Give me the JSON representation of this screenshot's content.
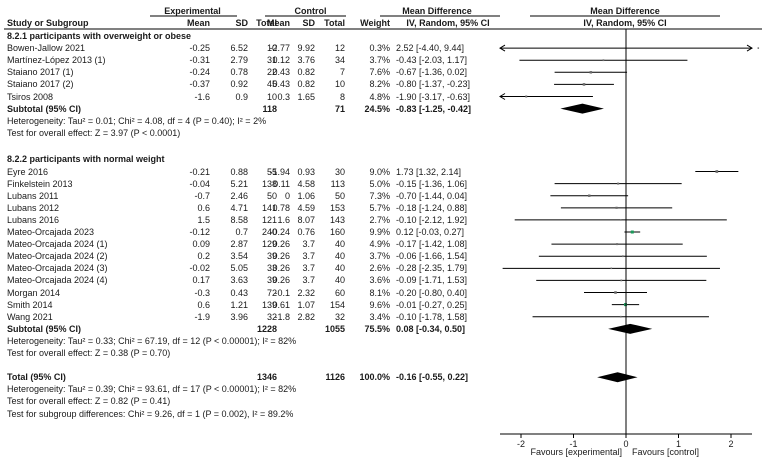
{
  "chart_data": {
    "type": "forest",
    "title": "Mean Difference",
    "plot_subtitle": "IV, Random, 95% CI",
    "header": {
      "group_experimental": "Experimental",
      "group_control": "Control",
      "weighted_title": "Mean Difference",
      "study": "Study or Subgroup",
      "mean_e": "Mean",
      "sd_e": "SD",
      "total_e": "Total",
      "mean_c": "Mean",
      "sd_c": "SD",
      "total_c": "Total",
      "weight": "Weight",
      "ci": "IV, Random, 95% CI"
    },
    "xaxis": {
      "range": [
        -2.4,
        2.4
      ],
      "ticks": [
        -2,
        -1,
        0,
        1,
        2
      ],
      "left_label": "Favours [experimental]",
      "right_label": "Favours [control]"
    },
    "subgroups": [
      {
        "title": "8.2.1 participants with overweight or obese",
        "studies": [
          {
            "name": "Bowen-Jallow 2021",
            "mean_e": "-0.25",
            "sd_e": "6.52",
            "n_e": "10",
            "mean_c": "-2.77",
            "sd_c": "9.92",
            "n_c": "12",
            "weight": "0.3%",
            "ci_text": "2.52 [-4.40, 9.44]",
            "md": 2.52,
            "lo": -4.4,
            "hi": 9.44
          },
          {
            "name": "Martínez-López 2013 (1)",
            "mean_e": "-0.31",
            "sd_e": "2.79",
            "n_e": "31",
            "mean_c": "0.12",
            "sd_c": "3.76",
            "n_c": "34",
            "weight": "3.7%",
            "ci_text": "-0.43 [-2.03, 1.17]",
            "md": -0.43,
            "lo": -2.03,
            "hi": 1.17
          },
          {
            "name": "Staiano 2017 (1)",
            "mean_e": "-0.24",
            "sd_e": "0.78",
            "n_e": "22",
            "mean_c": "0.43",
            "sd_c": "0.82",
            "n_c": "7",
            "weight": "7.6%",
            "ci_text": "-0.67 [-1.36, 0.02]",
            "md": -0.67,
            "lo": -1.36,
            "hi": 0.02
          },
          {
            "name": "Staiano 2017 (2)",
            "mean_e": "-0.37",
            "sd_e": "0.92",
            "n_e": "45",
            "mean_c": "0.43",
            "sd_c": "0.82",
            "n_c": "10",
            "weight": "8.2%",
            "ci_text": "-0.80 [-1.37, -0.23]",
            "md": -0.8,
            "lo": -1.37,
            "hi": -0.23
          },
          {
            "name": "Tsiros 2008",
            "mean_e": "-1.6",
            "sd_e": "0.9",
            "n_e": "10",
            "mean_c": "0.3",
            "sd_c": "1.65",
            "n_c": "8",
            "weight": "4.8%",
            "ci_text": "-1.90 [-3.17, -0.63]",
            "md": -1.9,
            "lo": -3.17,
            "hi": -0.63
          }
        ],
        "subtotal": {
          "label": "Subtotal (95% CI)",
          "n_e": "118",
          "n_c": "71",
          "weight": "24.5%",
          "ci_text": "-0.83 [-1.25, -0.42]",
          "md": -0.83,
          "lo": -1.25,
          "hi": -0.42
        },
        "heterogeneity": "Heterogeneity: Tau² = 0.01; Chi² = 4.08, df = 4 (P = 0.40); I² = 2%",
        "overall_test": "Test for overall effect: Z = 3.97 (P < 0.0001)"
      },
      {
        "title": "8.2.2 participants with normal weight",
        "studies": [
          {
            "name": "Eyre 2016",
            "mean_e": "-0.21",
            "sd_e": "0.88",
            "n_e": "55",
            "mean_c": "-1.94",
            "sd_c": "0.93",
            "n_c": "30",
            "weight": "9.0%",
            "ci_text": "1.73 [1.32, 2.14]",
            "md": 1.73,
            "lo": 1.32,
            "hi": 2.14
          },
          {
            "name": "Finkelstein 2013",
            "mean_e": "-0.04",
            "sd_e": "5.21",
            "n_e": "138",
            "mean_c": "0.11",
            "sd_c": "4.58",
            "n_c": "113",
            "weight": "5.0%",
            "ci_text": "-0.15 [-1.36, 1.06]",
            "md": -0.15,
            "lo": -1.36,
            "hi": 1.06
          },
          {
            "name": "Lubans 2011",
            "mean_e": "-0.7",
            "sd_e": "2.46",
            "n_e": "50",
            "mean_c": "0",
            "sd_c": "1.06",
            "n_c": "50",
            "weight": "7.3%",
            "ci_text": "-0.70 [-1.44, 0.04]",
            "md": -0.7,
            "lo": -1.44,
            "hi": 0.04
          },
          {
            "name": "Lubans 2012",
            "mean_e": "0.6",
            "sd_e": "4.71",
            "n_e": "141",
            "mean_c": "0.78",
            "sd_c": "4.59",
            "n_c": "153",
            "weight": "5.7%",
            "ci_text": "-0.18 [-1.24, 0.88]",
            "md": -0.18,
            "lo": -1.24,
            "hi": 0.88
          },
          {
            "name": "Lubans 2016",
            "mean_e": "1.5",
            "sd_e": "8.58",
            "n_e": "121",
            "mean_c": "1.6",
            "sd_c": "8.07",
            "n_c": "143",
            "weight": "2.7%",
            "ci_text": "-0.10 [-2.12, 1.92]",
            "md": -0.1,
            "lo": -2.12,
            "hi": 1.92
          },
          {
            "name": "Mateo-Orcajada 2023",
            "mean_e": "-0.12",
            "sd_e": "0.7",
            "n_e": "240",
            "mean_c": "-0.24",
            "sd_c": "0.76",
            "n_c": "160",
            "weight": "9.9%",
            "ci_text": "0.12 [-0.03, 0.27]",
            "md": 0.12,
            "lo": -0.03,
            "hi": 0.27
          },
          {
            "name": "Mateo-Orcajada 2024 (1)",
            "mean_e": "0.09",
            "sd_e": "2.87",
            "n_e": "129",
            "mean_c": "0.26",
            "sd_c": "3.7",
            "n_c": "40",
            "weight": "4.9%",
            "ci_text": "-0.17 [-1.42, 1.08]",
            "md": -0.17,
            "lo": -1.42,
            "hi": 1.08
          },
          {
            "name": "Mateo-Orcajada 2024 (2)",
            "mean_e": "0.2",
            "sd_e": "3.54",
            "n_e": "39",
            "mean_c": "0.26",
            "sd_c": "3.7",
            "n_c": "40",
            "weight": "3.7%",
            "ci_text": "-0.06 [-1.66, 1.54]",
            "md": -0.06,
            "lo": -1.66,
            "hi": 1.54
          },
          {
            "name": "Mateo-Orcajada 2024 (3)",
            "mean_e": "-0.02",
            "sd_e": "5.05",
            "n_e": "33",
            "mean_c": "0.26",
            "sd_c": "3.7",
            "n_c": "40",
            "weight": "2.6%",
            "ci_text": "-0.28 [-2.35, 1.79]",
            "md": -0.28,
            "lo": -2.35,
            "hi": 1.79
          },
          {
            "name": "Mateo-Orcajada 2024 (4)",
            "mean_e": "0.17",
            "sd_e": "3.63",
            "n_e": "39",
            "mean_c": "0.26",
            "sd_c": "3.7",
            "n_c": "40",
            "weight": "3.6%",
            "ci_text": "-0.09 [-1.71, 1.53]",
            "md": -0.09,
            "lo": -1.71,
            "hi": 1.53
          },
          {
            "name": "Morgan 2014",
            "mean_e": "-0.3",
            "sd_e": "0.43",
            "n_e": "72",
            "mean_c": "-0.1",
            "sd_c": "2.32",
            "n_c": "60",
            "weight": "8.1%",
            "ci_text": "-0.20 [-0.80, 0.40]",
            "md": -0.2,
            "lo": -0.8,
            "hi": 0.4
          },
          {
            "name": "Smith 2014",
            "mean_e": "0.6",
            "sd_e": "1.21",
            "n_e": "139",
            "mean_c": "0.61",
            "sd_c": "1.07",
            "n_c": "154",
            "weight": "9.6%",
            "ci_text": "-0.01 [-0.27, 0.25]",
            "md": -0.01,
            "lo": -0.27,
            "hi": 0.25
          },
          {
            "name": "Wang 2021",
            "mean_e": "-1.9",
            "sd_e": "3.96",
            "n_e": "32",
            "mean_c": "-1.8",
            "sd_c": "2.82",
            "n_c": "32",
            "weight": "3.4%",
            "ci_text": "-0.10 [-1.78, 1.58]",
            "md": -0.1,
            "lo": -1.78,
            "hi": 1.58
          }
        ],
        "subtotal": {
          "label": "Subtotal (95% CI)",
          "n_e": "1228",
          "n_c": "1055",
          "weight": "75.5%",
          "ci_text": "0.08 [-0.34, 0.50]",
          "md": 0.08,
          "lo": -0.34,
          "hi": 0.5
        },
        "heterogeneity": "Heterogeneity: Tau² = 0.33; Chi² = 67.19, df = 12 (P < 0.00001); I² = 82%",
        "overall_test": "Test for overall effect: Z = 0.38 (P = 0.70)"
      }
    ],
    "total": {
      "label": "Total (95% CI)",
      "n_e": "1346",
      "n_c": "1126",
      "weight": "100.0%",
      "ci_text": "-0.16 [-0.55, 0.22]",
      "md": -0.16,
      "lo": -0.55,
      "hi": 0.22
    },
    "total_heterogeneity": "Heterogeneity: Tau² = 0.39; Chi² = 93.61, df = 17 (P < 0.00001); I² = 82%",
    "total_overall_test": "Test for overall effect: Z = 0.82 (P = 0.41)",
    "subgroup_test": "Test for subgroup differences: Chi² = 9.26, df = 1 (P = 0.002), I² = 89.2%",
    "colors": {
      "text": "#1a1a1a",
      "line": "#000000",
      "highlight_marker": "#1a9a5a"
    }
  }
}
